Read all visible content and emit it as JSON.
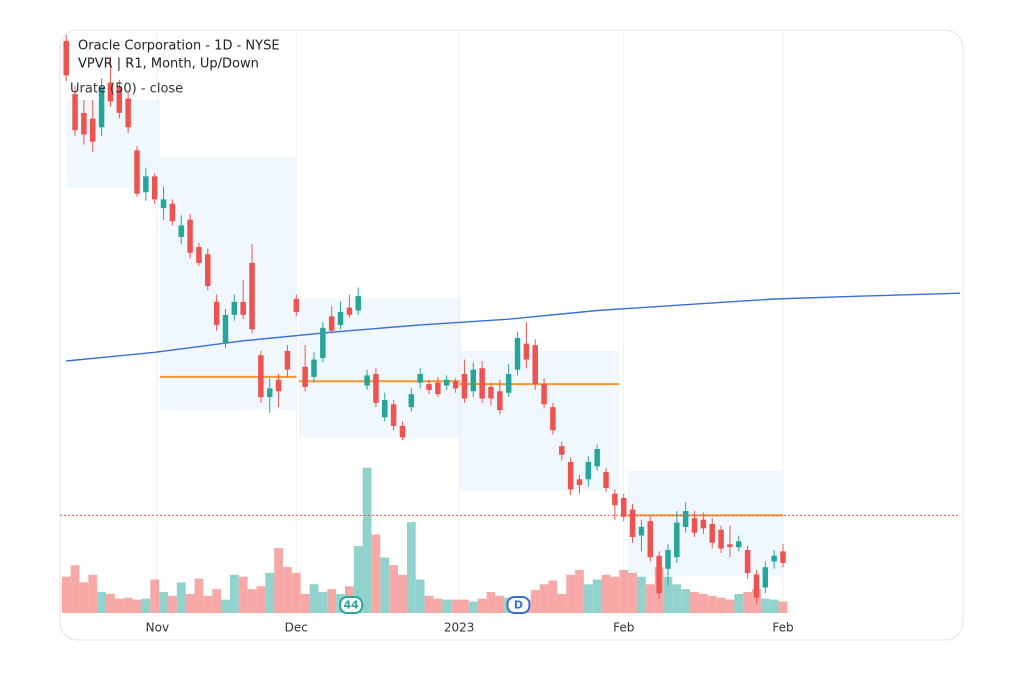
{
  "chart_data": {
    "type": "candlestick",
    "title": "Oracle Corporation - 1D - NYSE",
    "subtitle": "VPVR | R1, Month, Up/Down",
    "indicator_label": "Urate (50) - close",
    "up_color": "#26a69a",
    "down_color": "#ef5350",
    "ylim": [
      60,
      100
    ],
    "xlim": [
      -0.7,
      101
    ],
    "xticks": [
      {
        "value": 10.3,
        "label": "Nov"
      },
      {
        "value": 26,
        "label": "Dec"
      },
      {
        "value": 44.4,
        "label": "2023"
      },
      {
        "value": 63,
        "label": "Feb"
      },
      {
        "value": 81,
        "label": "Feb"
      }
    ],
    "open": [
      99.6,
      95.9,
      94.6,
      94.2,
      93.6,
      96.7,
      96.4,
      95.6,
      92.0,
      89.1,
      90.2,
      88.0,
      88.3,
      86.0,
      87.2,
      85.3,
      84.8,
      81.5,
      78.6,
      80.6,
      81.5,
      84.2,
      77.8,
      74.9,
      76.1,
      78.1,
      81.7,
      77.0,
      76.3,
      77.6,
      80.5,
      79.9,
      81.1,
      80.9,
      75.7,
      76.5,
      73.5,
      74.4,
      72.9,
      74.2,
      75.9,
      75.8,
      75.9,
      75.7,
      76.0,
      76.5,
      75.3,
      76.9,
      75.6,
      75.3,
      75.2,
      76.8,
      78.6,
      78.5,
      75.8,
      74.2,
      71.5,
      70.4,
      69.2,
      69.2,
      70.1,
      69.7,
      68.2,
      67.9,
      67.1,
      65.3,
      66.3,
      63.9,
      63.0,
      63.8,
      65.9,
      66.5,
      66.4,
      66.1,
      65.7,
      64.7,
      64.5,
      64.3,
      62.6,
      61.7,
      63.5,
      64.2
    ],
    "high": [
      100,
      96.5,
      95.5,
      95.5,
      97,
      98.5,
      96.9,
      96,
      92.3,
      90.8,
      90.4,
      89.5,
      88.6,
      87.5,
      87.6,
      85.6,
      85.2,
      82.0,
      81.0,
      82.0,
      83.0,
      85.5,
      78.1,
      76.2,
      76.5,
      78.5,
      82.0,
      78.5,
      78.0,
      80.1,
      81.2,
      81.5,
      82.0,
      82.5,
      76.8,
      76.9,
      75.2,
      74.7,
      73.2,
      75.5,
      76.9,
      76.1,
      76.3,
      76.4,
      76.2,
      77.5,
      77.3,
      77.4,
      75.9,
      76.1,
      77.2,
      79.4,
      80.1,
      78.9,
      76.2,
      74.5,
      71.8,
      70.7,
      69.5,
      70.8,
      71.6,
      70.0,
      68.5,
      68.2,
      67.5,
      66.4,
      66.6,
      64.2,
      64.7,
      67.0,
      67.6,
      67.0,
      66.9,
      66.5,
      66.0,
      66.0,
      65.3,
      64.6,
      62.9,
      63.5,
      64.3,
      64.7
    ],
    "low": [
      96.8,
      93,
      92.4,
      91.9,
      93,
      95,
      94.2,
      93.2,
      88.8,
      88.5,
      88.3,
      87.2,
      86.8,
      85.5,
      84.5,
      84.0,
      82.3,
      79.5,
      78.3,
      80.2,
      80.3,
      79.3,
      74.5,
      73.8,
      74.2,
      76.3,
      80.5,
      75.3,
      75.9,
      77.3,
      79.3,
      79.6,
      80.4,
      80.6,
      75.4,
      74.2,
      73.2,
      72.6,
      71.9,
      73.9,
      75.5,
      75.1,
      74.9,
      75.4,
      75.2,
      74.5,
      74.9,
      74.5,
      74.3,
      73.7,
      74.9,
      76.4,
      76.9,
      75.4,
      74.1,
      72.3,
      70.5,
      68.1,
      68.2,
      68.7,
      69.8,
      68.3,
      66.4,
      66.3,
      64.8,
      64.2,
      63.5,
      60.9,
      61.8,
      63.4,
      65.5,
      65.2,
      65.4,
      64.4,
      64.1,
      63.8,
      64.2,
      62.3,
      60.6,
      61.3,
      63.0,
      63.1
    ],
    "close": [
      97.2,
      93.4,
      93.1,
      92.6,
      96.4,
      95.4,
      94.6,
      93.6,
      89.0,
      90.2,
      88.6,
      88.6,
      87.1,
      86.8,
      84.9,
      84.2,
      82.6,
      79.9,
      80.6,
      81.5,
      80.6,
      79.6,
      74.9,
      75.5,
      75.3,
      76.8,
      80.8,
      75.6,
      77.5,
      79.7,
      79.5,
      80.8,
      80.6,
      81.9,
      76.4,
      74.5,
      74.7,
      72.9,
      72.1,
      75.1,
      76.5,
      75.4,
      75.1,
      76.1,
      75.5,
      74.8,
      76.8,
      74.8,
      74.8,
      74.0,
      76.5,
      79.0,
      77.5,
      75.8,
      74.4,
      72.6,
      70.9,
      68.5,
      68.8,
      70.4,
      71.3,
      68.6,
      67.4,
      66.6,
      65.2,
      65.9,
      63.8,
      61.3,
      64.3,
      66.2,
      67.0,
      65.5,
      65.8,
      64.8,
      64.4,
      64.5,
      64.9,
      62.7,
      61.0,
      63.1,
      63.9,
      63.4
    ],
    "volume": [
      38,
      50,
      32,
      40,
      22,
      20,
      15,
      16,
      14,
      15,
      35,
      22,
      18,
      32,
      20,
      36,
      18,
      25,
      14,
      40,
      38,
      25,
      28,
      42,
      68,
      48,
      42,
      20,
      30,
      22,
      25,
      20,
      28,
      70,
      152,
      82,
      58,
      50,
      40,
      95,
      35,
      18,
      15,
      14,
      14,
      14,
      12,
      15,
      22,
      18,
      16,
      15,
      14,
      24,
      30,
      34,
      20,
      40,
      45,
      30,
      35,
      40,
      38,
      45,
      42,
      38,
      30,
      48,
      38,
      30,
      25,
      22,
      20,
      18,
      16,
      14,
      20,
      22,
      25,
      15,
      14,
      12
    ],
    "volume_ylim": [
      0,
      160
    ],
    "ma": {
      "color": "#3a6fd8",
      "x": [
        0,
        10,
        20,
        30,
        40,
        50,
        60,
        70,
        80,
        90,
        101
      ],
      "values": [
        77.4,
        78.0,
        78.8,
        79.4,
        79.9,
        80.3,
        80.9,
        81.3,
        81.7,
        81.9,
        82.1
      ]
    },
    "price_line": 66.7,
    "volume_profile": [
      {
        "start": 0,
        "end": 10.6,
        "high": 95.5,
        "low": 89.4
      },
      {
        "start": 10.6,
        "end": 26,
        "high": 91.5,
        "low": 74.0,
        "poc": 76.3
      },
      {
        "start": 26.3,
        "end": 44.6,
        "high": 81.7,
        "low": 72.1,
        "poc": 76.0
      },
      {
        "start": 44.4,
        "end": 62.5,
        "high": 78.1,
        "low": 68.4,
        "poc": 75.8
      },
      {
        "start": 63.4,
        "end": 81,
        "high": 69.8,
        "low": 62.5,
        "poc": 66.7
      }
    ],
    "events": [
      {
        "x": 32.2,
        "label": "44",
        "color": "#26a69a"
      },
      {
        "x": 51.1,
        "label": "D",
        "color": "#3a6fd8"
      }
    ]
  }
}
